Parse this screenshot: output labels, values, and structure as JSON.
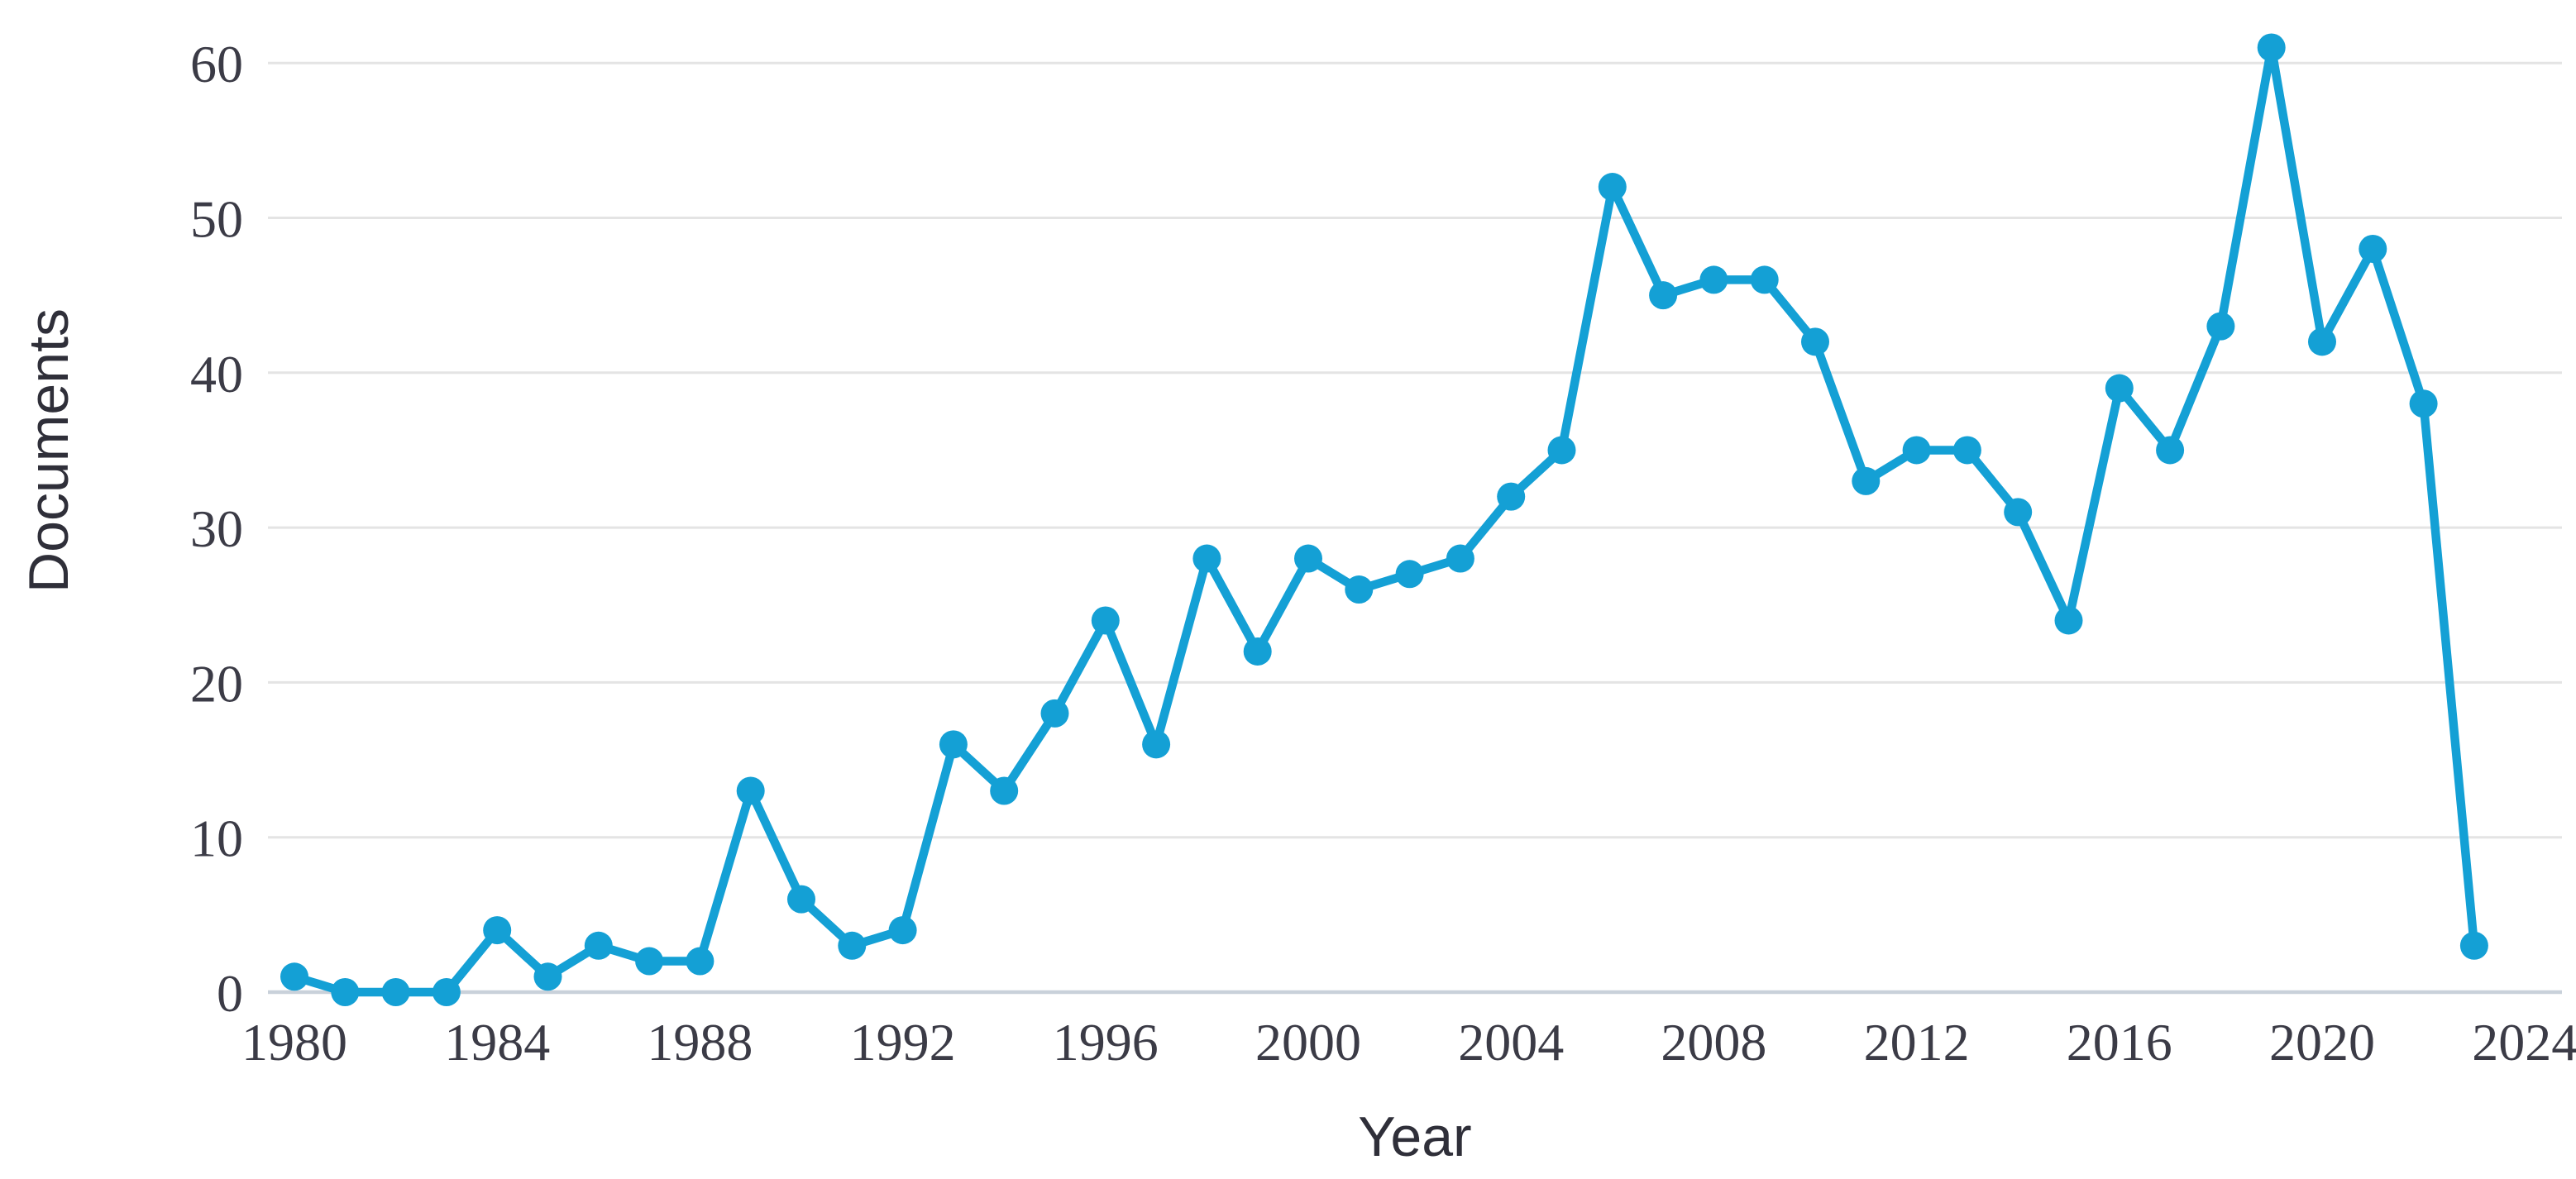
{
  "chart_data": {
    "type": "line",
    "title": "",
    "xlabel": "Year",
    "ylabel": "Documents",
    "x_tick_labels": [
      1980,
      1984,
      1988,
      1992,
      1996,
      2000,
      2004,
      2008,
      2012,
      2016,
      2020,
      2024
    ],
    "y_tick_labels": [
      0,
      10,
      20,
      30,
      40,
      50,
      60
    ],
    "xlim": [
      1979.2,
      2025
    ],
    "ylim": [
      0,
      65
    ],
    "grid": "horizontal",
    "legend": "none",
    "series": [
      {
        "name": "Documents",
        "x": [
          1980,
          1981,
          1982,
          1983,
          1984,
          1985,
          1986,
          1987,
          1988,
          1989,
          1990,
          1991,
          1992,
          1993,
          1994,
          1995,
          1996,
          1997,
          1998,
          1999,
          2000,
          2001,
          2002,
          2003,
          2004,
          2005,
          2006,
          2007,
          2008,
          2009,
          2010,
          2011,
          2012,
          2013,
          2014,
          2015,
          2016,
          2017,
          2018,
          2019,
          2020,
          2021,
          2022,
          2023
        ],
        "values": [
          1,
          0,
          0,
          0,
          4,
          1,
          3,
          2,
          2,
          13,
          6,
          3,
          4,
          16,
          13,
          18,
          24,
          16,
          28,
          22,
          28,
          26,
          27,
          28,
          32,
          35,
          52,
          45,
          46,
          46,
          42,
          33,
          35,
          35,
          31,
          24,
          39,
          35,
          43,
          61,
          42,
          48,
          38,
          3
        ]
      }
    ],
    "colors": {
      "series_line": "#14a0d5",
      "gridline": "#e4e4e4",
      "zero_axis_line": "#c9d1da",
      "tick_text": "#3b3b46",
      "axis_title_text": "#2f2f39",
      "background": "#ffffff"
    }
  }
}
